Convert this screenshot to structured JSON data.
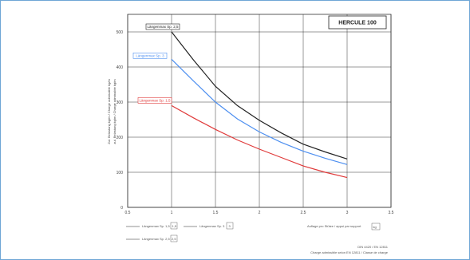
{
  "chart_data": {
    "type": "line",
    "title": "HERCULE 100",
    "ylabel_line1": "Zul. Belastung kg/m / Charge admissible kg/m",
    "ylabel_line2": "zul. Belastung kg/m / Charge admissible kg/m",
    "x_ticks": [
      "0.5",
      "1",
      "1.5",
      "2",
      "2.5",
      "3",
      "3.5"
    ],
    "y_ticks": [
      "0",
      "100",
      "200",
      "300",
      "400",
      "500"
    ],
    "xlim": [
      0.5,
      3.5
    ],
    "ylim": [
      0,
      550
    ],
    "grid": true,
    "series": [
      {
        "name": "Längenmax Sp. 2,5",
        "color": "#222222",
        "x": [
          1.0,
          1.25,
          1.5,
          1.75,
          2.0,
          2.25,
          2.5,
          2.75,
          3.0
        ],
        "y": [
          500,
          420,
          345,
          290,
          248,
          212,
          180,
          158,
          138
        ]
      },
      {
        "name": "Längenmax Sp. 3",
        "color": "#4d8ff0",
        "x": [
          1.0,
          1.25,
          1.5,
          1.75,
          2.0,
          2.25,
          2.5,
          2.75,
          3.0
        ],
        "y": [
          422,
          360,
          300,
          252,
          215,
          185,
          160,
          140,
          122
        ]
      },
      {
        "name": "Längenmax Sp. 1,5",
        "color": "#e03a3a",
        "x": [
          1.0,
          1.25,
          1.5,
          1.75,
          2.0,
          2.25,
          2.5,
          2.75,
          3.0
        ],
        "y": [
          290,
          255,
          222,
          192,
          166,
          142,
          118,
          100,
          85
        ]
      }
    ],
    "legend_bottom": [
      {
        "text": "Längenmax Sp. 1,5",
        "value": "1,5"
      },
      {
        "text": "Längenmax Sp. 3",
        "value": "3"
      },
      {
        "text": "Längenmax Sp. 2,5",
        "value": "2,5"
      }
    ],
    "note_right": "Auflage pro Stütze / appui par support",
    "note_right_value": "kg",
    "footer_line1": "DIN 4420 / EN 12811",
    "footer_line2": "Charge admissible selon EN 12811 / Classe de charge"
  }
}
